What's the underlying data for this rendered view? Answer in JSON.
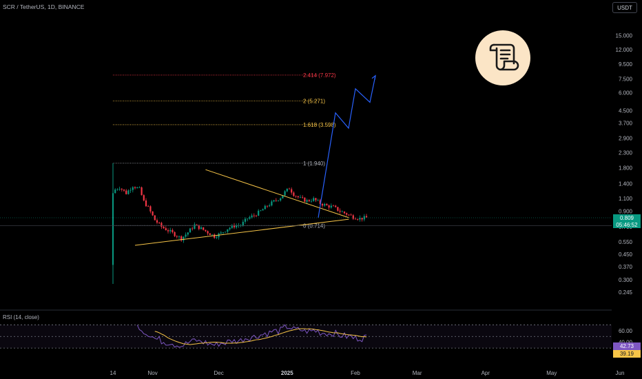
{
  "header": {
    "title": "SCR / TetherUS, 1D, BINANCE"
  },
  "currency_button": {
    "label": "USDT"
  },
  "rsi": {
    "title": "RSI (14, close)",
    "value_label": "42.73",
    "ma_label": "39.19",
    "ticks": [
      "60.00",
      "40.00",
      "20.00"
    ]
  },
  "price_badge": {
    "price": "0.809",
    "countdown": "05:46:52"
  },
  "icon": {
    "name": "document-scroll-icon",
    "bg_color": "#fbe5c6",
    "stroke_color": "#1a1a1a"
  },
  "colors": {
    "up": "#089981",
    "down": "#f23645",
    "triangle": "#f7c548",
    "projection": "#2962ff",
    "rsi_line": "#7e57c2",
    "rsi_ma": "#f7c548"
  },
  "chart_data": {
    "type": "candlestick",
    "y_scale": "log",
    "y_ticks": [
      "15.000",
      "12.000",
      "9.500",
      "7.500",
      "6.000",
      "4.500",
      "3.700",
      "2.900",
      "2.300",
      "1.800",
      "1.400",
      "1.100",
      "0.900",
      "0.700",
      "0.550",
      "0.450",
      "0.370",
      "0.300",
      "0.245"
    ],
    "x_ticks": [
      "14",
      "Nov",
      "Dec",
      "2025",
      "Feb",
      "Mar",
      "Apr",
      "May",
      "Jun"
    ],
    "fib_levels": [
      {
        "label": "2.414 (7.972)",
        "value": 7.972,
        "color": "#f23645"
      },
      {
        "label": "2 (5.271)",
        "value": 5.271,
        "color": "#f7c548"
      },
      {
        "label": "1.618 (3.598)",
        "value": 3.598,
        "color": "#f7c548"
      },
      {
        "label": "1 (1.940)",
        "value": 1.94,
        "color": "#b2b5be"
      },
      {
        "label": "0 (0.714)",
        "value": 0.714,
        "color": "#b2b5be"
      }
    ],
    "triangle": {
      "upper": [
        [
          "Nov 25",
          1.75
        ],
        [
          "Jan 29",
          0.81
        ]
      ],
      "lower": [
        [
          "Oct 24",
          0.52
        ],
        [
          "Jan 29",
          0.79
        ]
      ]
    },
    "projection": [
      0.81,
      4.35,
      3.4,
      6.4,
      5.15,
      7.9
    ],
    "listing": {
      "open": 0.38,
      "high": 1.94,
      "low": 0.28,
      "close": 1.2
    }
  }
}
